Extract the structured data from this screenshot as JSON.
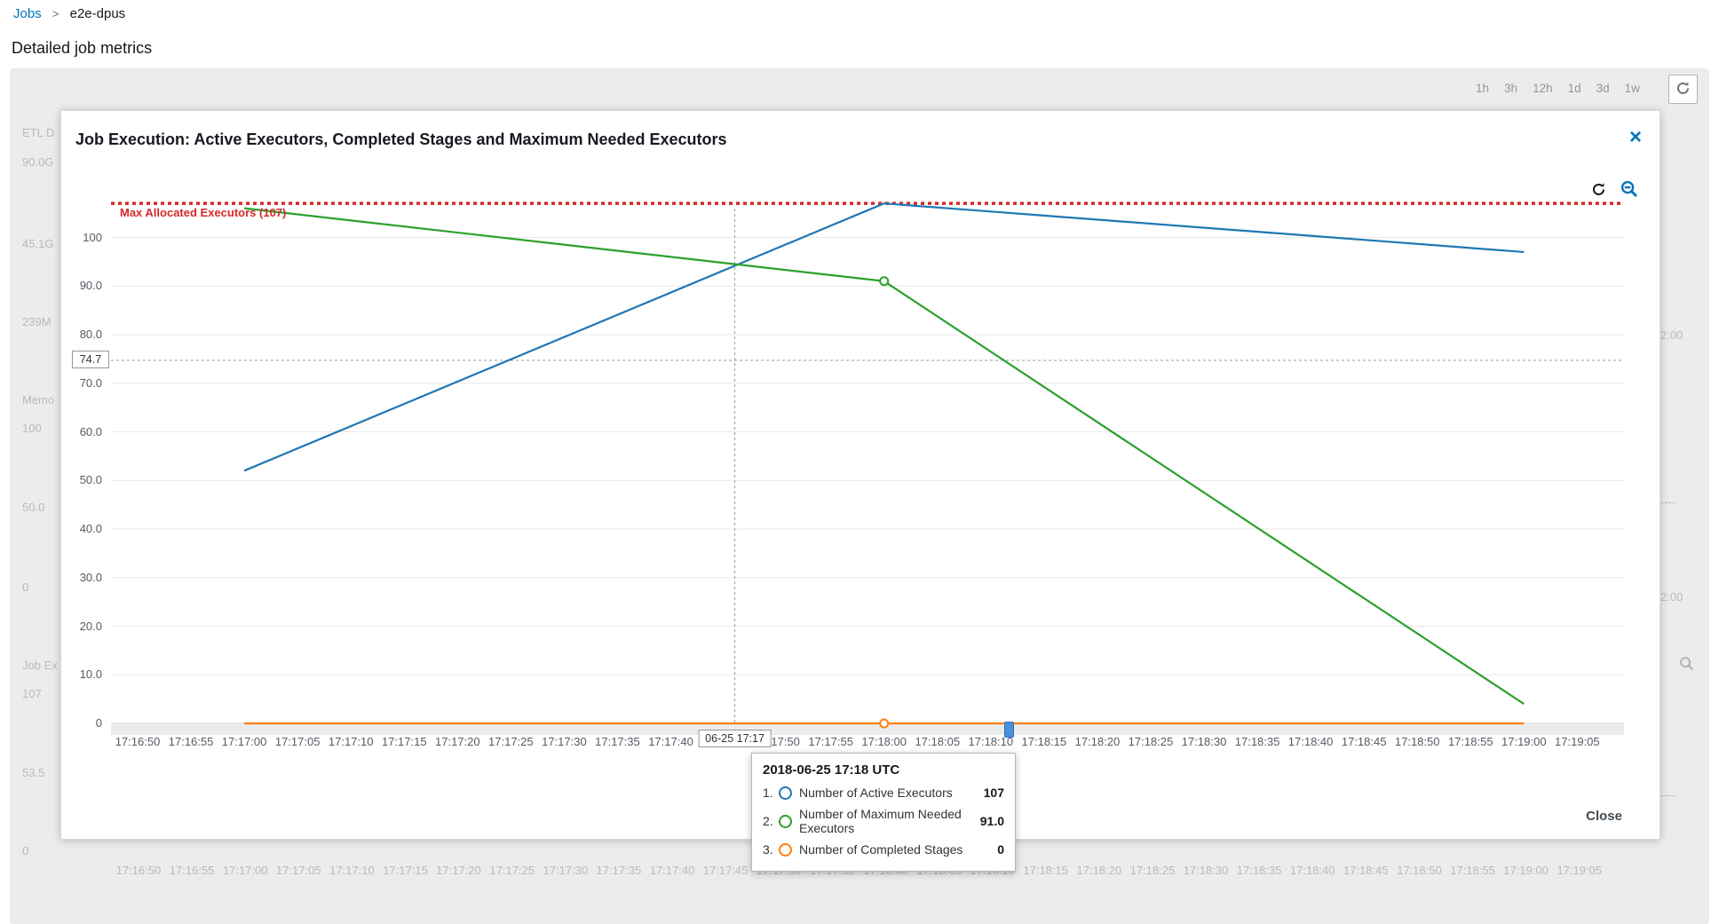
{
  "breadcrumb": {
    "jobs": "Jobs",
    "separator": ">",
    "current": "e2e-dpus"
  },
  "page_title": "Detailed job metrics",
  "time_range": {
    "options": [
      "1h",
      "3h",
      "12h",
      "1d",
      "3d",
      "1w"
    ]
  },
  "modal": {
    "title": "Job Execution: Active Executors, Completed Stages and Maximum Needed Executors",
    "close_label": "Close"
  },
  "chart_data": {
    "type": "line",
    "title": "Job Execution: Active Executors, Completed Stages and Maximum Needed Executors",
    "ylim": [
      0,
      113
    ],
    "grid": true,
    "y_ticks": [
      {
        "label": "100",
        "value": 100
      },
      {
        "label": "90.0",
        "value": 90
      },
      {
        "label": "80.0",
        "value": 80
      },
      {
        "label": "70.0",
        "value": 70
      },
      {
        "label": "60.0",
        "value": 60
      },
      {
        "label": "50.0",
        "value": 50
      },
      {
        "label": "40.0",
        "value": 40
      },
      {
        "label": "30.0",
        "value": 30
      },
      {
        "label": "20.0",
        "value": 20
      },
      {
        "label": "10.0",
        "value": 10
      },
      {
        "label": "0",
        "value": 0
      }
    ],
    "x_ticks": [
      "17:16:50",
      "17:16:55",
      "17:17:00",
      "17:17:05",
      "17:17:10",
      "17:17:15",
      "17:17:20",
      "17:17:25",
      "17:17:30",
      "17:17:35",
      "17:17:40",
      "17:17:45",
      "17:17:50",
      "17:17:55",
      "17:18:00",
      "17:18:05",
      "17:18:10",
      "17:18:15",
      "17:18:20",
      "17:18:25",
      "17:18:30",
      "17:18:35",
      "17:18:40",
      "17:18:45",
      "17:18:50",
      "17:18:55",
      "17:19:00",
      "17:19:05"
    ],
    "max_line": {
      "label": "Max Allocated Executors (107)",
      "value": 107,
      "color": "#d62728"
    },
    "crosshair": {
      "x_time": "17:17:46",
      "x_label": "06-25 17:17",
      "y_value": 74.7,
      "y_label": "74.7"
    },
    "series": [
      {
        "name": "Number of Active Executors",
        "color": "#1f77b4",
        "points": [
          [
            "17:17:00",
            52
          ],
          [
            "17:18:00",
            107
          ],
          [
            "17:19:00",
            97
          ]
        ]
      },
      {
        "name": "Number of Maximum Needed Executors",
        "color": "#2ca02c",
        "points": [
          [
            "17:17:00",
            106
          ],
          [
            "17:18:00",
            91
          ],
          [
            "17:19:00",
            4
          ]
        ],
        "markers": [
          [
            "17:18:00",
            91
          ]
        ]
      },
      {
        "name": "Number of Completed Stages",
        "color": "#ff7f0e",
        "points": [
          [
            "17:17:00",
            0
          ],
          [
            "17:18:00",
            0
          ],
          [
            "17:19:00",
            0
          ]
        ],
        "markers": [
          [
            "17:18:00",
            0
          ]
        ]
      }
    ]
  },
  "tooltip": {
    "title": "2018-06-25 17:18 UTC",
    "rows": [
      {
        "index": "1.",
        "label": "Number of Active Executors",
        "value": "107",
        "color": "#1f77b4"
      },
      {
        "index": "2.",
        "label": "Number of Maximum Needed Executors",
        "value": "91.0",
        "color": "#2ca02c"
      },
      {
        "index": "3.",
        "label": "Number of Completed Stages",
        "value": "0",
        "color": "#ff7f0e"
      }
    ]
  },
  "background": {
    "left_labels": [
      "ETL D",
      "90.0G",
      "45.1G",
      "239M",
      "Memo",
      "100",
      "50.0",
      "0",
      "Job Ex",
      "107",
      "53.5",
      "0"
    ],
    "right_labels": [
      "2:00",
      "----",
      "2:00",
      "----"
    ]
  },
  "colors": {
    "accent": "#0073bb",
    "panel_bg": "#ececec",
    "max_line": "#d62728"
  }
}
